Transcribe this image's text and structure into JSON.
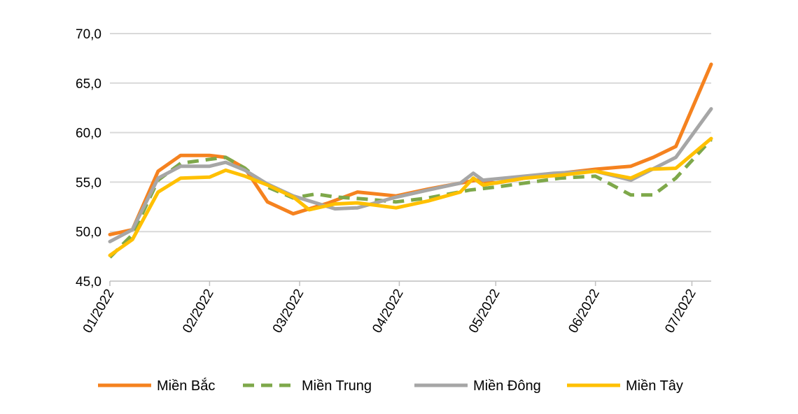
{
  "chart_data": {
    "type": "line",
    "title": "",
    "xlabel": "",
    "ylabel": "",
    "x_unit": "days since 01/01/2022",
    "xlim": [
      0,
      187
    ],
    "ylim": [
      45,
      70
    ],
    "grid": true,
    "legend_position": "bottom",
    "y_ticks": [
      {
        "value": 45,
        "label": "45,0"
      },
      {
        "value": 50,
        "label": "50,0"
      },
      {
        "value": 55,
        "label": "55,0"
      },
      {
        "value": 60,
        "label": "60,0"
      },
      {
        "value": 65,
        "label": "65,0"
      },
      {
        "value": 70,
        "label": "70,0"
      }
    ],
    "x_ticks": [
      {
        "value": 0,
        "label": "01/2022"
      },
      {
        "value": 31,
        "label": "02/2022"
      },
      {
        "value": 59,
        "label": "03/2022"
      },
      {
        "value": 90,
        "label": "04/2022"
      },
      {
        "value": 120,
        "label": "05/2022"
      },
      {
        "value": 151,
        "label": "06/2022"
      },
      {
        "value": 181,
        "label": "07/2022"
      }
    ],
    "series": [
      {
        "name": "Miền Bắc",
        "color": "#F5821F",
        "dash": false,
        "points": [
          [
            0,
            49.7
          ],
          [
            7,
            50.2
          ],
          [
            15,
            56.1
          ],
          [
            22,
            57.7
          ],
          [
            31,
            57.7
          ],
          [
            36,
            57.5
          ],
          [
            42,
            56.4
          ],
          [
            49,
            53.0
          ],
          [
            57,
            51.8
          ],
          [
            62,
            52.3
          ],
          [
            68,
            52.9
          ],
          [
            77,
            54.0
          ],
          [
            89,
            53.6
          ],
          [
            99,
            54.3
          ],
          [
            114,
            55.2
          ],
          [
            120,
            54.9
          ],
          [
            129,
            55.4
          ],
          [
            140,
            55.9
          ],
          [
            151,
            56.3
          ],
          [
            162,
            56.6
          ],
          [
            169,
            57.5
          ],
          [
            176,
            58.6
          ],
          [
            187,
            66.9
          ]
        ]
      },
      {
        "name": "Miền Trung",
        "color": "#7EA84A",
        "dash": true,
        "points": [
          [
            0,
            47.4
          ],
          [
            7,
            49.7
          ],
          [
            15,
            55.2
          ],
          [
            22,
            56.9
          ],
          [
            31,
            57.3
          ],
          [
            36,
            57.5
          ],
          [
            42,
            56.4
          ],
          [
            49,
            54.5
          ],
          [
            57,
            53.4
          ],
          [
            64,
            53.8
          ],
          [
            70,
            53.5
          ],
          [
            79,
            53.3
          ],
          [
            89,
            53.0
          ],
          [
            99,
            53.4
          ],
          [
            112,
            54.2
          ],
          [
            120,
            54.5
          ],
          [
            129,
            54.9
          ],
          [
            140,
            55.4
          ],
          [
            151,
            55.6
          ],
          [
            162,
            53.7
          ],
          [
            169,
            53.7
          ],
          [
            176,
            55.4
          ],
          [
            187,
            59.3
          ]
        ]
      },
      {
        "name": "Miền Đông",
        "color": "#A6A6A6",
        "dash": false,
        "points": [
          [
            0,
            49.0
          ],
          [
            7,
            50.2
          ],
          [
            15,
            55.4
          ],
          [
            22,
            56.6
          ],
          [
            31,
            56.6
          ],
          [
            36,
            57.0
          ],
          [
            42,
            56.2
          ],
          [
            49,
            54.8
          ],
          [
            57,
            53.6
          ],
          [
            70,
            52.3
          ],
          [
            77,
            52.4
          ],
          [
            88,
            53.4
          ],
          [
            99,
            54.2
          ],
          [
            109,
            54.9
          ],
          [
            113,
            55.9
          ],
          [
            116,
            55.2
          ],
          [
            129,
            55.6
          ],
          [
            138,
            55.9
          ],
          [
            151,
            56.1
          ],
          [
            162,
            55.2
          ],
          [
            176,
            57.5
          ],
          [
            187,
            62.4
          ]
        ]
      },
      {
        "name": "Miền Tây",
        "color": "#FFC000",
        "dash": false,
        "points": [
          [
            0,
            47.6
          ],
          [
            7,
            49.2
          ],
          [
            15,
            54.0
          ],
          [
            22,
            55.4
          ],
          [
            31,
            55.5
          ],
          [
            36,
            56.2
          ],
          [
            42,
            55.6
          ],
          [
            49,
            54.7
          ],
          [
            57,
            53.5
          ],
          [
            62,
            52.2
          ],
          [
            70,
            52.8
          ],
          [
            77,
            52.9
          ],
          [
            89,
            52.4
          ],
          [
            99,
            53.1
          ],
          [
            109,
            54.0
          ],
          [
            113,
            55.4
          ],
          [
            116,
            54.7
          ],
          [
            129,
            55.4
          ],
          [
            140,
            55.7
          ],
          [
            151,
            56.1
          ],
          [
            162,
            55.4
          ],
          [
            168,
            56.3
          ],
          [
            176,
            56.4
          ],
          [
            187,
            59.4
          ]
        ]
      }
    ]
  }
}
